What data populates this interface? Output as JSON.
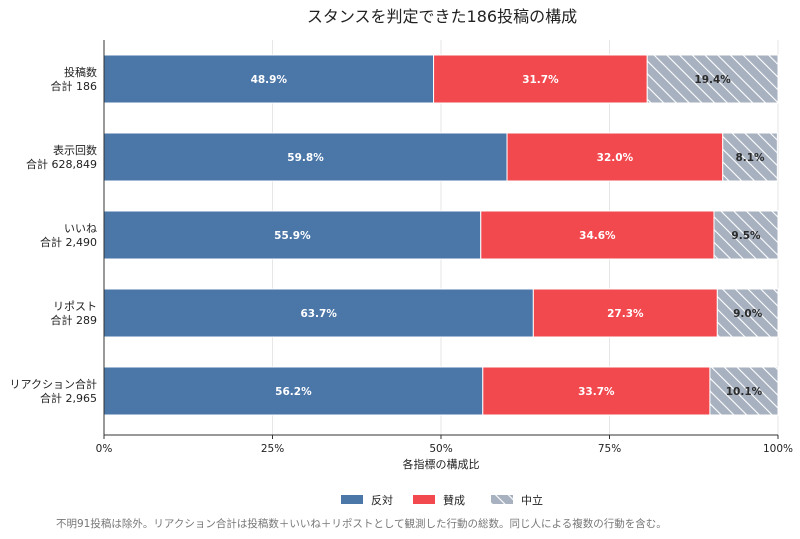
{
  "chart_data": {
    "type": "bar",
    "orientation": "horizontal",
    "stacked": true,
    "title": "スタンスを判定できた186投稿の構成",
    "xlabel": "各指標の構成比",
    "ylabel": "",
    "xlim": [
      0,
      100
    ],
    "x_ticks": [
      "0%",
      "25%",
      "50%",
      "75%",
      "100%"
    ],
    "grid": "vertical",
    "legend_position": "bottom-center",
    "categories": [
      {
        "name": "投稿数",
        "total": "合計 186"
      },
      {
        "name": "表示回数",
        "total": "合計 628,849"
      },
      {
        "name": "いいね",
        "total": "合計 2,490"
      },
      {
        "name": "リポスト",
        "total": "合計 289"
      },
      {
        "name": "リアクション合計",
        "total": "合計 2,965"
      }
    ],
    "series": [
      {
        "name": "反対",
        "color": "#4a76a8",
        "pattern": "solid",
        "label_color": "#ffffff",
        "values": [
          48.9,
          59.8,
          55.9,
          63.7,
          56.2
        ],
        "labels": [
          "48.9%",
          "59.8%",
          "55.9%",
          "63.7%",
          "56.2%"
        ]
      },
      {
        "name": "賛成",
        "color": "#f2494f",
        "pattern": "solid",
        "label_color": "#ffffff",
        "values": [
          31.7,
          32.0,
          34.6,
          27.3,
          33.7
        ],
        "labels": [
          "31.7%",
          "32.0%",
          "34.6%",
          "27.3%",
          "33.7%"
        ]
      },
      {
        "name": "中立",
        "color": "#a7b1bf",
        "pattern": "hatched",
        "label_color": "#2b2b2b",
        "values": [
          19.4,
          8.1,
          9.5,
          9.0,
          10.1
        ],
        "labels": [
          "19.4%",
          "8.1%",
          "9.5%",
          "9.0%",
          "10.1%"
        ]
      }
    ],
    "footnote": "不明91投稿は除外。リアクション合計は投稿数＋いいね＋リポストとして観測した行動の総数。同じ人による複数の行動を含む。"
  }
}
